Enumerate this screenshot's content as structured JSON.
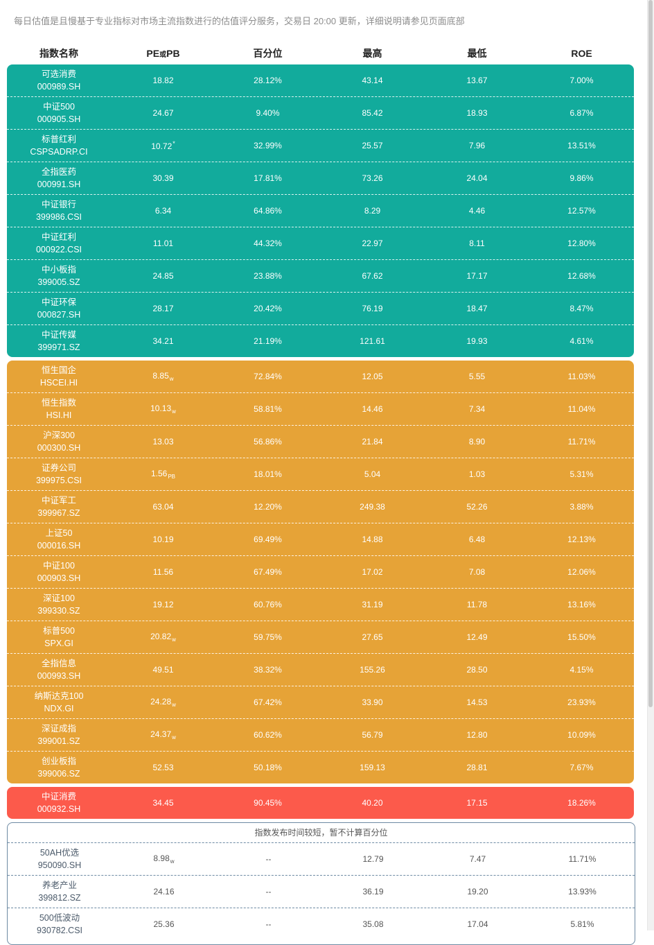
{
  "description": "每日估值是且慢基于专业指标对市场主流指数进行的估值评分服务，交易日 20:00 更新，详细说明请参见页面底部",
  "headers": {
    "name": "指数名称",
    "pe_main": "PE",
    "pe_or": "或",
    "pe_pb": "PB",
    "percentile": "百分位",
    "high": "最高",
    "low": "最低",
    "roe": "ROE"
  },
  "green_rows": [
    {
      "name": "可选消费",
      "code": "000989.SH",
      "pe": "18.82",
      "mark": "",
      "pct": "28.12%",
      "high": "43.14",
      "low": "13.67",
      "roe": "7.00%"
    },
    {
      "name": "中证500",
      "code": "000905.SH",
      "pe": "24.67",
      "mark": "",
      "pct": "9.40%",
      "high": "85.42",
      "low": "18.93",
      "roe": "6.87%"
    },
    {
      "name": "标普红利",
      "code": "CSPSADRP.CI",
      "pe": "10.72",
      "mark": "*",
      "pct": "32.99%",
      "high": "25.57",
      "low": "7.96",
      "roe": "13.51%"
    },
    {
      "name": "全指医药",
      "code": "000991.SH",
      "pe": "30.39",
      "mark": "",
      "pct": "17.81%",
      "high": "73.26",
      "low": "24.04",
      "roe": "9.86%"
    },
    {
      "name": "中证银行",
      "code": "399986.CSI",
      "pe": "6.34",
      "mark": "",
      "pct": "64.86%",
      "high": "8.29",
      "low": "4.46",
      "roe": "12.57%"
    },
    {
      "name": "中证红利",
      "code": "000922.CSI",
      "pe": "11.01",
      "mark": "",
      "pct": "44.32%",
      "high": "22.97",
      "low": "8.11",
      "roe": "12.80%"
    },
    {
      "name": "中小板指",
      "code": "399005.SZ",
      "pe": "24.85",
      "mark": "",
      "pct": "23.88%",
      "high": "67.62",
      "low": "17.17",
      "roe": "12.68%"
    },
    {
      "name": "中证环保",
      "code": "000827.SH",
      "pe": "28.17",
      "mark": "",
      "pct": "20.42%",
      "high": "76.19",
      "low": "18.47",
      "roe": "8.47%"
    },
    {
      "name": "中证传媒",
      "code": "399971.SZ",
      "pe": "34.21",
      "mark": "",
      "pct": "21.19%",
      "high": "121.61",
      "low": "19.93",
      "roe": "4.61%"
    }
  ],
  "orange_rows": [
    {
      "name": "恒生国企",
      "code": "HSCEI.HI",
      "pe": "8.85",
      "sub": "w",
      "pct": "72.84%",
      "high": "12.05",
      "low": "5.55",
      "roe": "11.03%"
    },
    {
      "name": "恒生指数",
      "code": "HSI.HI",
      "pe": "10.13",
      "sub": "w",
      "pct": "58.81%",
      "high": "14.46",
      "low": "7.34",
      "roe": "11.04%"
    },
    {
      "name": "沪深300",
      "code": "000300.SH",
      "pe": "13.03",
      "sub": "",
      "pct": "56.86%",
      "high": "21.84",
      "low": "8.90",
      "roe": "11.71%"
    },
    {
      "name": "证券公司",
      "code": "399975.CSI",
      "pe": "1.56",
      "sub": "PB",
      "pct": "18.01%",
      "high": "5.04",
      "low": "1.03",
      "roe": "5.31%"
    },
    {
      "name": "中证军工",
      "code": "399967.SZ",
      "pe": "63.04",
      "sub": "",
      "pct": "12.20%",
      "high": "249.38",
      "low": "52.26",
      "roe": "3.88%"
    },
    {
      "name": "上证50",
      "code": "000016.SH",
      "pe": "10.19",
      "sub": "",
      "pct": "69.49%",
      "high": "14.88",
      "low": "6.48",
      "roe": "12.13%"
    },
    {
      "name": "中证100",
      "code": "000903.SH",
      "pe": "11.56",
      "sub": "",
      "pct": "67.49%",
      "high": "17.02",
      "low": "7.08",
      "roe": "12.06%"
    },
    {
      "name": "深证100",
      "code": "399330.SZ",
      "pe": "19.12",
      "sub": "",
      "pct": "60.76%",
      "high": "31.19",
      "low": "11.78",
      "roe": "13.16%"
    },
    {
      "name": "标普500",
      "code": "SPX.GI",
      "pe": "20.82",
      "sub": "w",
      "pct": "59.75%",
      "high": "27.65",
      "low": "12.49",
      "roe": "15.50%"
    },
    {
      "name": "全指信息",
      "code": "000993.SH",
      "pe": "49.51",
      "sub": "",
      "pct": "38.32%",
      "high": "155.26",
      "low": "28.50",
      "roe": "4.15%"
    },
    {
      "name": "纳斯达克100",
      "code": "NDX.GI",
      "pe": "24.28",
      "sub": "w",
      "pct": "67.42%",
      "high": "33.90",
      "low": "14.53",
      "roe": "23.93%"
    },
    {
      "name": "深证成指",
      "code": "399001.SZ",
      "pe": "24.37",
      "sub": "w",
      "pct": "60.62%",
      "high": "56.79",
      "low": "12.80",
      "roe": "10.09%"
    },
    {
      "name": "创业板指",
      "code": "399006.SZ",
      "pe": "52.53",
      "sub": "",
      "pct": "50.18%",
      "high": "159.13",
      "low": "28.81",
      "roe": "7.67%"
    }
  ],
  "red_rows": [
    {
      "name": "中证消费",
      "code": "000932.SH",
      "pe": "34.45",
      "sub": "",
      "pct": "90.45%",
      "high": "40.20",
      "low": "17.15",
      "roe": "18.26%"
    }
  ],
  "white_notice": "指数发布时间较短，暂不计算百分位",
  "white_rows": [
    {
      "name": "50AH优选",
      "code": "950090.SH",
      "pe": "8.98",
      "sub": "w",
      "pct": "--",
      "high": "12.79",
      "low": "7.47",
      "roe": "11.71%"
    },
    {
      "name": "养老产业",
      "code": "399812.SZ",
      "pe": "24.16",
      "sub": "",
      "pct": "--",
      "high": "36.19",
      "low": "19.20",
      "roe": "13.93%"
    },
    {
      "name": "500低波动",
      "code": "930782.CSI",
      "pe": "25.36",
      "sub": "",
      "pct": "--",
      "high": "35.08",
      "low": "17.04",
      "roe": "5.81%"
    }
  ],
  "colors": {
    "green": "#12ab9c",
    "orange": "#e6a337",
    "red": "#fc5a4b",
    "white_border": "#6d8aa3"
  }
}
